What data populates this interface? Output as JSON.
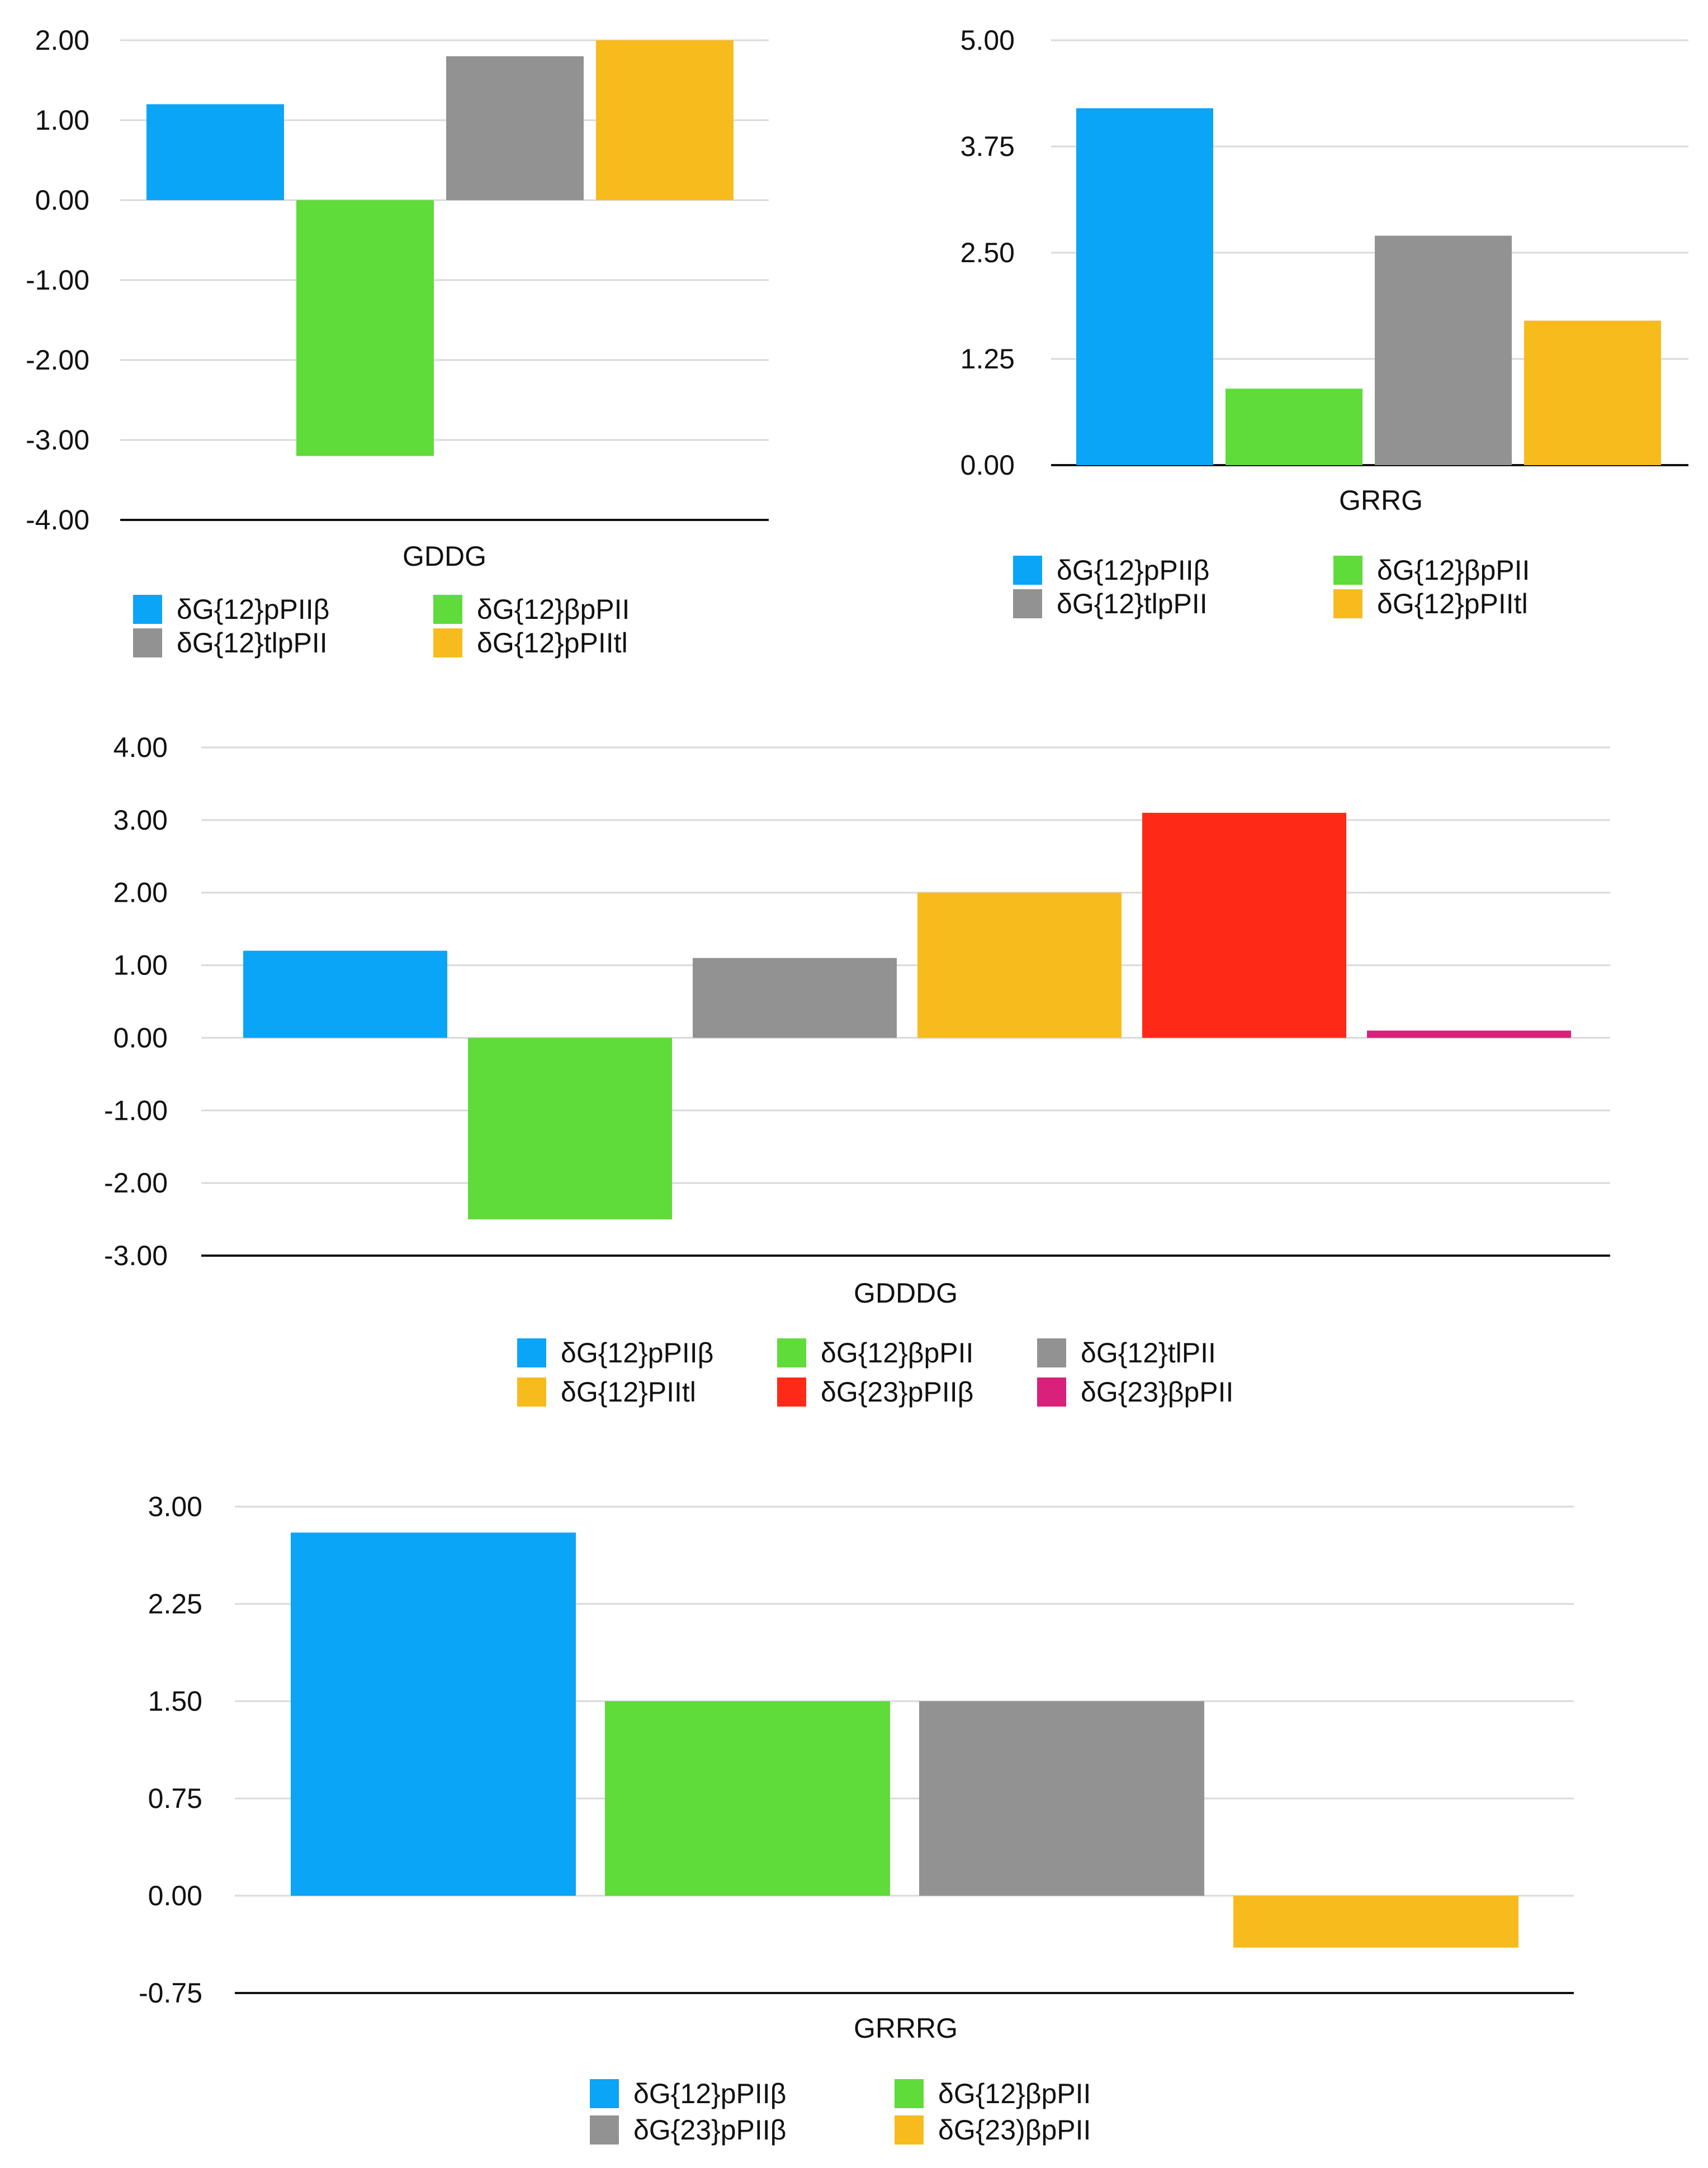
{
  "chart_data": [
    {
      "type": "bar",
      "title": "",
      "xlabel": "GDDG",
      "ylabel": "",
      "ylim": [
        -4,
        2
      ],
      "yticks": [
        "2.00",
        "1.00",
        "0.00",
        "-1.00",
        "-2.00",
        "-3.00",
        "-4.00"
      ],
      "categories": [
        "GDDG"
      ],
      "legend_position": "bottom",
      "series": [
        {
          "name": "δG{12}pPIIβ",
          "values": [
            1.2
          ],
          "color": "#0aa5f7"
        },
        {
          "name": "δG{12}βpPII",
          "values": [
            -3.2
          ],
          "color": "#5fdb3a"
        },
        {
          "name": "δG{12}tlpPII",
          "values": [
            1.8
          ],
          "color": "#929292"
        },
        {
          "name": "δG{12}pPIItl",
          "values": [
            2.0
          ],
          "color": "#f8bb1d"
        }
      ]
    },
    {
      "type": "bar",
      "title": "",
      "xlabel": "GRRG",
      "ylabel": "",
      "ylim": [
        0,
        5
      ],
      "yticks": [
        "5.00",
        "3.75",
        "2.50",
        "1.25",
        "0.00"
      ],
      "categories": [
        "GRRG"
      ],
      "legend_position": "bottom",
      "series": [
        {
          "name": "δG{12}pPIIβ",
          "values": [
            4.2
          ],
          "color": "#0aa5f7"
        },
        {
          "name": "δG{12}βpPII",
          "values": [
            0.9
          ],
          "color": "#5fdb3a"
        },
        {
          "name": "δG{12}tlpPII",
          "values": [
            2.7
          ],
          "color": "#929292"
        },
        {
          "name": "δG{12}pPIItl",
          "values": [
            1.7
          ],
          "color": "#f8bb1d"
        }
      ]
    },
    {
      "type": "bar",
      "title": "",
      "xlabel": "GDDDG",
      "ylabel": "",
      "ylim": [
        -3,
        4
      ],
      "yticks": [
        "4.00",
        "3.00",
        "2.00",
        "1.00",
        "0.00",
        "-1.00",
        "-2.00",
        "-3.00"
      ],
      "categories": [
        "GDDDG"
      ],
      "legend_position": "bottom",
      "series": [
        {
          "name": "δG{12}pPIIβ",
          "values": [
            1.2
          ],
          "color": "#0aa5f7"
        },
        {
          "name": "δG{12}βpPII",
          "values": [
            -2.5
          ],
          "color": "#5fdb3a"
        },
        {
          "name": "δG{12}tlPII",
          "values": [
            1.1
          ],
          "color": "#929292"
        },
        {
          "name": "δG{12}PIItl",
          "values": [
            2.0
          ],
          "color": "#f8bb1d"
        },
        {
          "name": "δG{23}pPIIβ",
          "values": [
            3.1
          ],
          "color": "#fe2a17"
        },
        {
          "name": "δG{23}βpPII",
          "values": [
            0.1
          ],
          "color": "#d9207a"
        }
      ]
    },
    {
      "type": "bar",
      "title": "",
      "xlabel": "GRRRG",
      "ylabel": "",
      "ylim": [
        -0.75,
        3
      ],
      "yticks": [
        "3.00",
        "2.25",
        "1.50",
        "0.75",
        "0.00",
        "-0.75"
      ],
      "categories": [
        "GRRRG"
      ],
      "legend_position": "bottom",
      "series": [
        {
          "name": "δG{12}pPIIβ",
          "values": [
            2.8
          ],
          "color": "#0aa5f7"
        },
        {
          "name": "δG{12}βpPII",
          "values": [
            1.5
          ],
          "color": "#5fdb3a"
        },
        {
          "name": "δG{23}pPIIβ",
          "values": [
            1.5
          ],
          "color": "#929292"
        },
        {
          "name": "δG{23)βpPII",
          "values": [
            -0.4
          ],
          "color": "#f8bb1d"
        }
      ]
    }
  ]
}
